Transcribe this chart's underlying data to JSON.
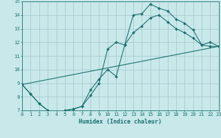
{
  "xlabel": "Humidex (Indice chaleur)",
  "bg_color": "#c8e8ea",
  "grid_color": "#aaccd0",
  "line_color": "#1a7070",
  "xlim": [
    0,
    23
  ],
  "ylim": [
    7,
    15
  ],
  "xticks": [
    0,
    1,
    2,
    3,
    4,
    5,
    6,
    7,
    8,
    9,
    10,
    11,
    12,
    13,
    14,
    15,
    16,
    17,
    18,
    19,
    20,
    21,
    22,
    23
  ],
  "yticks": [
    7,
    8,
    9,
    10,
    11,
    12,
    13,
    14,
    15
  ],
  "line1_x": [
    0,
    1,
    2,
    3,
    4,
    5,
    6,
    7,
    8,
    9,
    10,
    11,
    12,
    13,
    14,
    15,
    16,
    17,
    18,
    19,
    20,
    21,
    22,
    23
  ],
  "line1_y": [
    8.9,
    8.2,
    7.5,
    7.0,
    6.7,
    7.0,
    7.1,
    7.3,
    8.5,
    9.3,
    10.0,
    9.5,
    11.8,
    14.0,
    14.1,
    14.8,
    14.5,
    14.3,
    13.7,
    13.4,
    12.9,
    11.8,
    12.0,
    11.7
  ],
  "line2_x": [
    0,
    1,
    2,
    3,
    4,
    5,
    6,
    7,
    8,
    9,
    10,
    11,
    12,
    13,
    14,
    15,
    16,
    17,
    18,
    19,
    20,
    21,
    22,
    23
  ],
  "line2_y": [
    8.9,
    8.2,
    7.5,
    7.0,
    6.7,
    7.0,
    7.1,
    7.3,
    8.1,
    9.0,
    11.5,
    12.0,
    11.8,
    12.7,
    13.2,
    13.8,
    14.0,
    13.5,
    13.0,
    12.7,
    12.3,
    11.8,
    11.7,
    11.7
  ],
  "line3_x": [
    0,
    23
  ],
  "line3_y": [
    8.9,
    11.7
  ]
}
